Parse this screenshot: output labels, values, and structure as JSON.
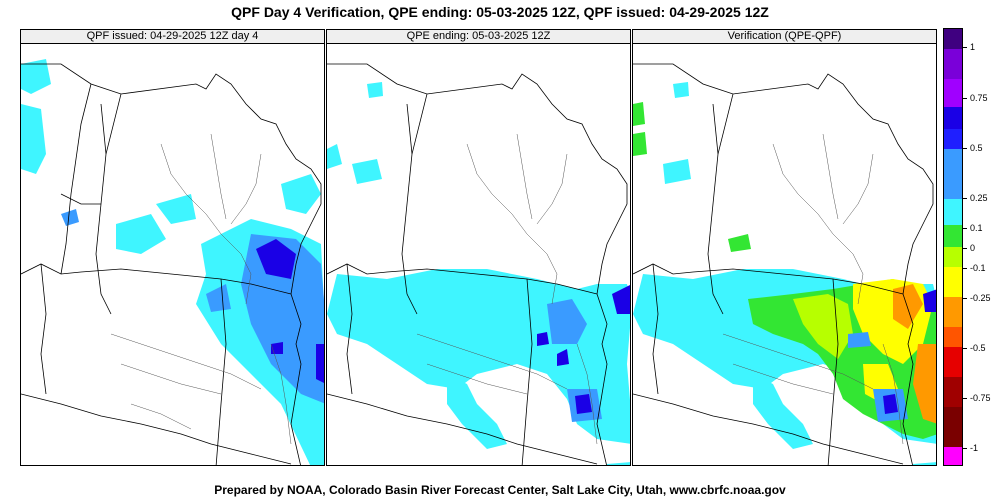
{
  "title": "QPF Day 4 Verification, QPE ending: 05-03-2025 12Z, QPF issued: 04-29-2025 12Z",
  "footer": "Prepared by NOAA, Colorado Basin River Forecast Center, Salt Lake City, Utah, www.cbrfc.noaa.gov",
  "panels": [
    {
      "label": "QPF issued: 04-29-2025 12Z day 4"
    },
    {
      "label": "QPE ending: 05-03-2025 12Z"
    },
    {
      "label": "Verification (QPE-QPF)"
    }
  ],
  "colorbar": {
    "colors": [
      "#3f0080",
      "#7a00d9",
      "#a000ff",
      "#1a00e6",
      "#1f1fff",
      "#3a9bff",
      "#3ff5ff",
      "#33e633",
      "#b7ff00",
      "#ffff00",
      "#ff9900",
      "#ff5500",
      "#e60000",
      "#a00000",
      "#7a0000",
      "#ff00ff"
    ],
    "labels": [
      "1",
      "0.75",
      "0.5",
      "0.25",
      "0.1",
      "0",
      "-0.1",
      "-0.25",
      "-0.5",
      "-0.75",
      "-1"
    ]
  }
}
